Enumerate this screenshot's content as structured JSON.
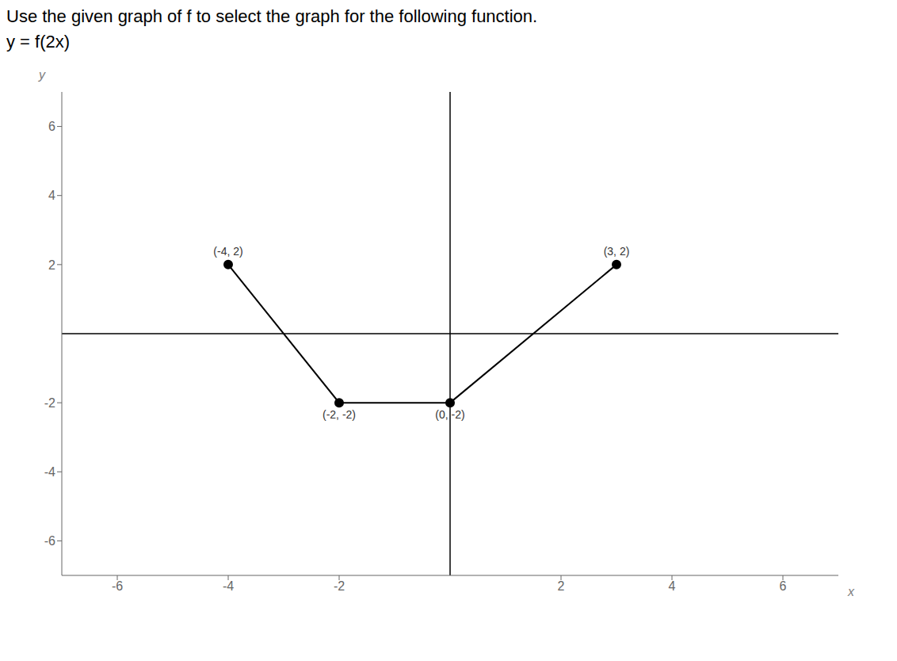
{
  "chart_data": {
    "type": "line",
    "title": "Use the given graph of f to select the graph for the following function.",
    "subtitle": "y = f(2x)",
    "x_label": "x",
    "y_label": "y",
    "x": [
      -4,
      -2,
      0,
      3
    ],
    "values": [
      2,
      -2,
      -2,
      2
    ],
    "value_labels": [
      "(-4, 2)",
      "(-2, -2)",
      "(0, -2)",
      "(3, 2)"
    ],
    "data_labels": true,
    "color": "#000000",
    "marker": "circle",
    "line_style": "solid",
    "xlim": [
      -7,
      7
    ],
    "ylim": [
      -7,
      7
    ],
    "xticks": [
      -6,
      -4,
      -2,
      2,
      4,
      6
    ],
    "yticks": [
      -6,
      -4,
      -2,
      2,
      4,
      6
    ],
    "grid": false
  }
}
